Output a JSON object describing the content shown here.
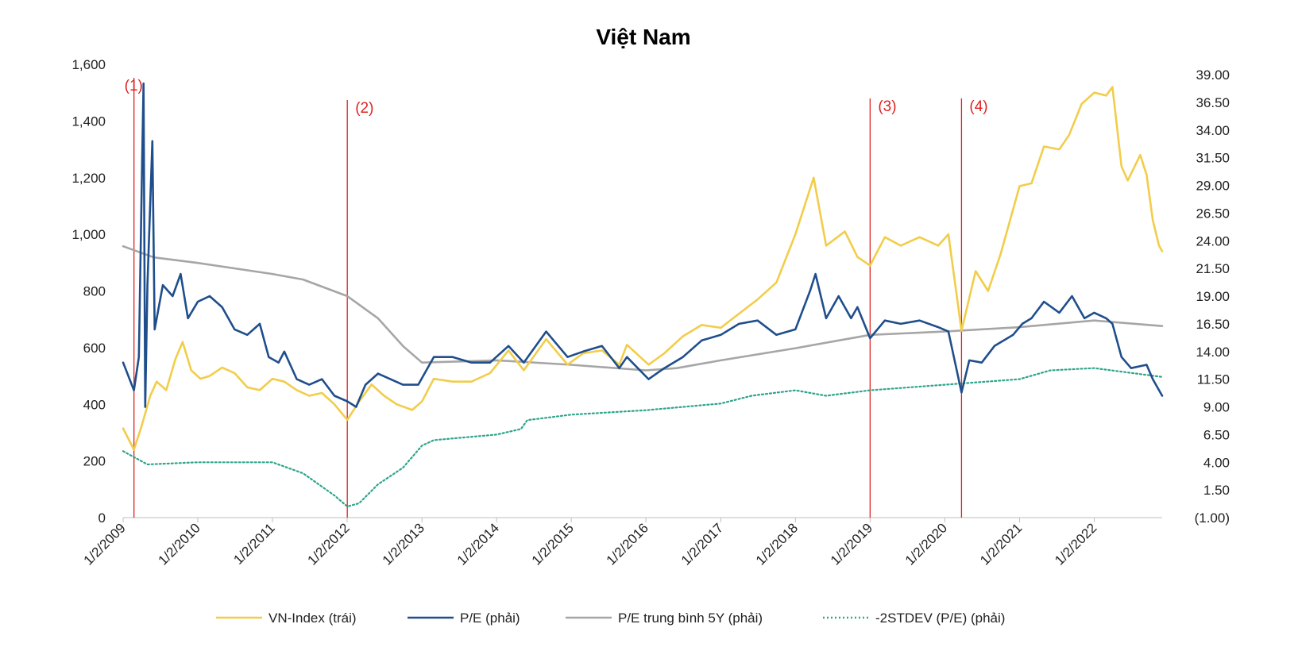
{
  "chart_data": {
    "type": "line",
    "title": "Việt Nam",
    "x_start": "2009-01-02",
    "x_end": "2022-11-30",
    "x_tick_labels": [
      "1/2/2009",
      "1/2/2010",
      "1/2/2011",
      "1/2/2012",
      "1/2/2013",
      "1/2/2014",
      "1/2/2015",
      "1/2/2016",
      "1/2/2017",
      "1/2/2018",
      "1/2/2019",
      "1/2/2020",
      "1/2/2021",
      "1/2/2022"
    ],
    "y_left": {
      "range": [
        0,
        1600
      ],
      "tick_labels": [
        "0",
        "200",
        "400",
        "600",
        "800",
        "1,000",
        "1,200",
        "1,400",
        "1,600"
      ]
    },
    "y_right": {
      "range": [
        -1,
        39
      ],
      "tick_labels": [
        "(1.00)",
        "1.50",
        "4.00",
        "6.50",
        "9.00",
        "11.50",
        "14.00",
        "16.50",
        "19.00",
        "21.50",
        "24.00",
        "26.50",
        "29.00",
        "31.50",
        "34.00",
        "36.50",
        "39.00"
      ]
    },
    "events": [
      {
        "label": "(1)",
        "date": "2009-02-24"
      },
      {
        "label": "(2)",
        "date": "2012-01-03"
      },
      {
        "label": "(3)",
        "date": "2019-01-02"
      },
      {
        "label": "(4)",
        "date": "2020-03-24"
      }
    ],
    "series": [
      {
        "name": "VN-Index (trái)",
        "axis": "left",
        "color": "#f2cd4a",
        "style": "solid",
        "points": [
          [
            "2009-01-02",
            315
          ],
          [
            "2009-02-24",
            240
          ],
          [
            "2009-04-01",
            320
          ],
          [
            "2009-05-15",
            430
          ],
          [
            "2009-06-15",
            480
          ],
          [
            "2009-08-01",
            450
          ],
          [
            "2009-09-15",
            560
          ],
          [
            "2009-10-20",
            620
          ],
          [
            "2009-12-01",
            520
          ],
          [
            "2010-01-15",
            490
          ],
          [
            "2010-03-01",
            500
          ],
          [
            "2010-05-01",
            530
          ],
          [
            "2010-07-01",
            510
          ],
          [
            "2010-09-01",
            460
          ],
          [
            "2010-11-01",
            450
          ],
          [
            "2011-01-02",
            490
          ],
          [
            "2011-03-01",
            480
          ],
          [
            "2011-05-01",
            450
          ],
          [
            "2011-07-01",
            430
          ],
          [
            "2011-09-01",
            440
          ],
          [
            "2011-11-01",
            400
          ],
          [
            "2012-01-03",
            345
          ],
          [
            "2012-03-01",
            410
          ],
          [
            "2012-05-01",
            470
          ],
          [
            "2012-07-01",
            430
          ],
          [
            "2012-09-01",
            400
          ],
          [
            "2012-11-15",
            380
          ],
          [
            "2013-01-02",
            410
          ],
          [
            "2013-03-01",
            490
          ],
          [
            "2013-06-01",
            480
          ],
          [
            "2013-09-01",
            480
          ],
          [
            "2013-12-01",
            510
          ],
          [
            "2014-03-01",
            590
          ],
          [
            "2014-05-15",
            520
          ],
          [
            "2014-09-01",
            630
          ],
          [
            "2014-12-15",
            540
          ],
          [
            "2015-03-01",
            580
          ],
          [
            "2015-06-01",
            590
          ],
          [
            "2015-08-25",
            540
          ],
          [
            "2015-10-01",
            610
          ],
          [
            "2016-01-15",
            540
          ],
          [
            "2016-04-01",
            580
          ],
          [
            "2016-07-01",
            640
          ],
          [
            "2016-10-01",
            680
          ],
          [
            "2017-01-02",
            670
          ],
          [
            "2017-04-01",
            720
          ],
          [
            "2017-07-01",
            770
          ],
          [
            "2017-10-01",
            830
          ],
          [
            "2018-01-02",
            1000
          ],
          [
            "2018-04-01",
            1200
          ],
          [
            "2018-06-01",
            960
          ],
          [
            "2018-09-01",
            1010
          ],
          [
            "2018-11-01",
            920
          ],
          [
            "2019-01-02",
            890
          ],
          [
            "2019-03-15",
            990
          ],
          [
            "2019-06-01",
            960
          ],
          [
            "2019-09-01",
            990
          ],
          [
            "2019-12-01",
            960
          ],
          [
            "2020-01-20",
            1000
          ],
          [
            "2020-03-24",
            660
          ],
          [
            "2020-06-01",
            870
          ],
          [
            "2020-08-01",
            800
          ],
          [
            "2020-10-01",
            930
          ],
          [
            "2021-01-02",
            1170
          ],
          [
            "2021-03-01",
            1180
          ],
          [
            "2021-05-01",
            1310
          ],
          [
            "2021-07-15",
            1300
          ],
          [
            "2021-09-01",
            1350
          ],
          [
            "2021-11-01",
            1460
          ],
          [
            "2022-01-02",
            1500
          ],
          [
            "2022-03-01",
            1490
          ],
          [
            "2022-04-01",
            1520
          ],
          [
            "2022-05-15",
            1240
          ],
          [
            "2022-06-15",
            1190
          ],
          [
            "2022-08-15",
            1280
          ],
          [
            "2022-09-15",
            1210
          ],
          [
            "2022-10-15",
            1050
          ],
          [
            "2022-11-15",
            960
          ],
          [
            "2022-11-30",
            940
          ]
        ]
      },
      {
        "name": "P/E (phải)",
        "axis": "right",
        "color": "#1f4e8c",
        "style": "solid",
        "points": [
          [
            "2009-01-02",
            13.0
          ],
          [
            "2009-02-24",
            10.5
          ],
          [
            "2009-03-20",
            13.5
          ],
          [
            "2009-04-05",
            31.0
          ],
          [
            "2009-04-12",
            38.2
          ],
          [
            "2009-04-20",
            9.0
          ],
          [
            "2009-05-01",
            20.0
          ],
          [
            "2009-05-25",
            33.0
          ],
          [
            "2009-06-05",
            16.0
          ],
          [
            "2009-07-15",
            20.0
          ],
          [
            "2009-09-01",
            19.0
          ],
          [
            "2009-10-10",
            21.0
          ],
          [
            "2009-11-15",
            17.0
          ],
          [
            "2010-01-02",
            18.5
          ],
          [
            "2010-03-01",
            19.0
          ],
          [
            "2010-05-01",
            18.0
          ],
          [
            "2010-07-01",
            16.0
          ],
          [
            "2010-09-01",
            15.5
          ],
          [
            "2010-11-01",
            16.5
          ],
          [
            "2010-12-15",
            13.5
          ],
          [
            "2011-02-01",
            13.0
          ],
          [
            "2011-03-01",
            14.0
          ],
          [
            "2011-05-01",
            11.5
          ],
          [
            "2011-07-01",
            11.0
          ],
          [
            "2011-09-01",
            11.5
          ],
          [
            "2011-11-01",
            10.0
          ],
          [
            "2012-01-03",
            9.5
          ],
          [
            "2012-02-15",
            9.0
          ],
          [
            "2012-04-01",
            11.0
          ],
          [
            "2012-06-01",
            12.0
          ],
          [
            "2012-08-01",
            11.5
          ],
          [
            "2012-10-01",
            11.0
          ],
          [
            "2012-12-15",
            11.0
          ],
          [
            "2013-03-01",
            13.5
          ],
          [
            "2013-06-01",
            13.5
          ],
          [
            "2013-09-01",
            13.0
          ],
          [
            "2013-12-01",
            13.0
          ],
          [
            "2014-03-01",
            14.5
          ],
          [
            "2014-05-15",
            13.0
          ],
          [
            "2014-09-01",
            15.8
          ],
          [
            "2014-12-15",
            13.5
          ],
          [
            "2015-03-01",
            14.0
          ],
          [
            "2015-06-01",
            14.5
          ],
          [
            "2015-08-25",
            12.5
          ],
          [
            "2015-10-01",
            13.5
          ],
          [
            "2016-01-15",
            11.5
          ],
          [
            "2016-04-01",
            12.5
          ],
          [
            "2016-07-01",
            13.5
          ],
          [
            "2016-10-01",
            15.0
          ],
          [
            "2017-01-02",
            15.5
          ],
          [
            "2017-04-01",
            16.5
          ],
          [
            "2017-07-01",
            16.8
          ],
          [
            "2017-10-01",
            15.5
          ],
          [
            "2018-01-02",
            16.0
          ],
          [
            "2018-03-15",
            19.5
          ],
          [
            "2018-04-10",
            21.0
          ],
          [
            "2018-06-01",
            17.0
          ],
          [
            "2018-08-01",
            19.0
          ],
          [
            "2018-10-01",
            17.0
          ],
          [
            "2018-11-01",
            18.0
          ],
          [
            "2019-01-02",
            15.2
          ],
          [
            "2019-03-15",
            16.8
          ],
          [
            "2019-06-01",
            16.5
          ],
          [
            "2019-09-01",
            16.8
          ],
          [
            "2019-12-01",
            16.2
          ],
          [
            "2020-01-20",
            15.8
          ],
          [
            "2020-03-24",
            10.3
          ],
          [
            "2020-05-01",
            13.2
          ],
          [
            "2020-07-01",
            13.0
          ],
          [
            "2020-09-01",
            14.5
          ],
          [
            "2020-12-01",
            15.5
          ],
          [
            "2021-01-15",
            16.5
          ],
          [
            "2021-03-01",
            17.0
          ],
          [
            "2021-05-01",
            18.5
          ],
          [
            "2021-07-15",
            17.5
          ],
          [
            "2021-09-15",
            19.0
          ],
          [
            "2021-11-15",
            17.0
          ],
          [
            "2022-01-02",
            17.5
          ],
          [
            "2022-03-01",
            17.0
          ],
          [
            "2022-04-01",
            16.5
          ],
          [
            "2022-05-15",
            13.5
          ],
          [
            "2022-07-01",
            12.5
          ],
          [
            "2022-09-15",
            12.8
          ],
          [
            "2022-10-15",
            11.5
          ],
          [
            "2022-11-30",
            10.0
          ]
        ]
      },
      {
        "name": "P/E trung bình 5Y (phải)",
        "axis": "right",
        "color": "#a6a6a6",
        "style": "solid",
        "points": [
          [
            "2009-01-02",
            23.5
          ],
          [
            "2009-06-01",
            22.5
          ],
          [
            "2010-01-02",
            22.0
          ],
          [
            "2011-01-02",
            21.0
          ],
          [
            "2011-06-01",
            20.5
          ],
          [
            "2012-01-03",
            19.0
          ],
          [
            "2012-06-01",
            17.0
          ],
          [
            "2012-10-01",
            14.5
          ],
          [
            "2013-01-02",
            13.0
          ],
          [
            "2014-01-02",
            13.2
          ],
          [
            "2015-01-02",
            12.8
          ],
          [
            "2016-01-02",
            12.3
          ],
          [
            "2016-06-01",
            12.5
          ],
          [
            "2017-01-02",
            13.2
          ],
          [
            "2018-01-02",
            14.3
          ],
          [
            "2019-01-02",
            15.5
          ],
          [
            "2020-01-02",
            15.8
          ],
          [
            "2021-01-02",
            16.2
          ],
          [
            "2022-01-02",
            16.8
          ],
          [
            "2022-11-30",
            16.3
          ]
        ]
      },
      {
        "name": "-2STDEV (P/E) (phải)",
        "axis": "right",
        "color": "#2ea58a",
        "style": "dotted",
        "points": [
          [
            "2009-01-02",
            5.0
          ],
          [
            "2009-05-01",
            3.8
          ],
          [
            "2010-01-02",
            4.0
          ],
          [
            "2011-01-02",
            4.0
          ],
          [
            "2011-06-01",
            3.0
          ],
          [
            "2011-11-01",
            1.0
          ],
          [
            "2012-01-03",
            0.0
          ],
          [
            "2012-03-01",
            0.3
          ],
          [
            "2012-06-01",
            2.0
          ],
          [
            "2012-10-01",
            3.5
          ],
          [
            "2013-01-02",
            5.5
          ],
          [
            "2013-03-01",
            6.0
          ],
          [
            "2014-01-02",
            6.5
          ],
          [
            "2014-05-01",
            7.0
          ],
          [
            "2014-06-01",
            7.8
          ],
          [
            "2015-01-02",
            8.3
          ],
          [
            "2016-01-02",
            8.7
          ],
          [
            "2017-01-02",
            9.3
          ],
          [
            "2017-06-01",
            10.0
          ],
          [
            "2018-01-02",
            10.5
          ],
          [
            "2018-06-01",
            10.0
          ],
          [
            "2019-01-02",
            10.5
          ],
          [
            "2020-01-02",
            11.0
          ],
          [
            "2021-01-02",
            11.5
          ],
          [
            "2021-06-01",
            12.3
          ],
          [
            "2022-01-02",
            12.5
          ],
          [
            "2022-11-30",
            11.7
          ]
        ]
      }
    ]
  }
}
